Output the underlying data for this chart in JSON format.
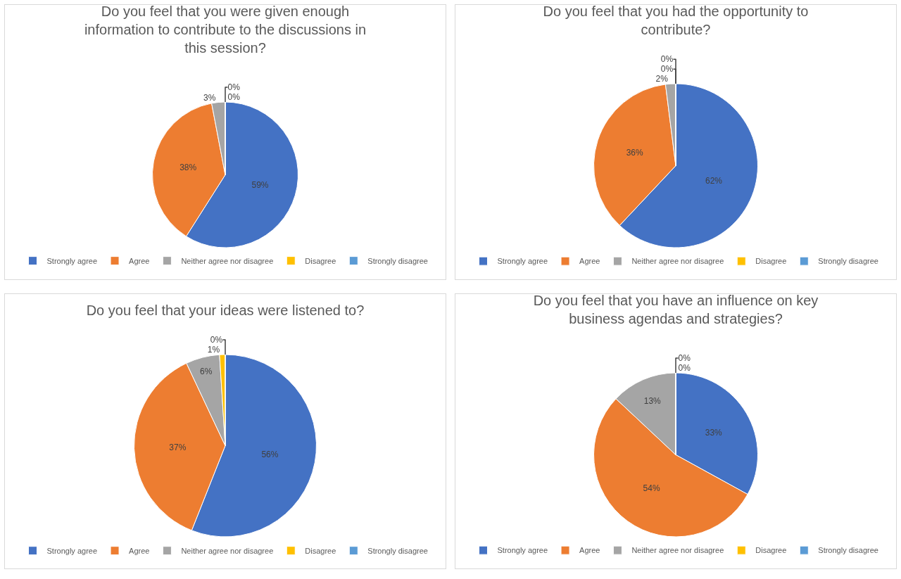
{
  "chart_data": [
    {
      "type": "pie",
      "title": "Do you feel that you were given enough information to contribute to the discussions in this session?",
      "categories": [
        "Strongly agree",
        "Agree",
        "Neither agree nor disagree",
        "Disagree",
        "Strongly disagree"
      ],
      "values": [
        59,
        38,
        3,
        0,
        0
      ],
      "value_labels": [
        "59%",
        "38%",
        "3%",
        "0%",
        "0%"
      ],
      "colors": [
        "#4472c4",
        "#ed7d31",
        "#a5a5a5",
        "#ffc000",
        "#5b9bd5"
      ],
      "legend": "bottom"
    },
    {
      "type": "pie",
      "title": "Do you feel that you had the opportunity to contribute?",
      "categories": [
        "Strongly agree",
        "Agree",
        "Neither agree nor disagree",
        "Disagree",
        "Strongly disagree"
      ],
      "values": [
        62,
        36,
        2,
        0,
        0
      ],
      "value_labels": [
        "62%",
        "36%",
        "2%",
        "0%",
        "0%"
      ],
      "colors": [
        "#4472c4",
        "#ed7d31",
        "#a5a5a5",
        "#ffc000",
        "#5b9bd5"
      ],
      "legend": "bottom"
    },
    {
      "type": "pie",
      "title": "Do you feel that your ideas were listened to?",
      "categories": [
        "Strongly agree",
        "Agree",
        "Neither agree nor disagree",
        "Disagree",
        "Strongly disagree"
      ],
      "values": [
        56,
        37,
        6,
        1,
        0
      ],
      "value_labels": [
        "56%",
        "37%",
        "6%",
        "1%",
        "0%"
      ],
      "colors": [
        "#4472c4",
        "#ed7d31",
        "#a5a5a5",
        "#ffc000",
        "#5b9bd5"
      ],
      "legend": "bottom"
    },
    {
      "type": "pie",
      "title": "Do you feel that you have an influence on key business agendas and strategies?",
      "categories": [
        "Strongly agree",
        "Agree",
        "Neither agree nor disagree",
        "Disagree",
        "Strongly disagree"
      ],
      "values": [
        33,
        54,
        13,
        0,
        0
      ],
      "value_labels": [
        "33%",
        "54%",
        "13%",
        "0%",
        "0%"
      ],
      "colors": [
        "#4472c4",
        "#ed7d31",
        "#a5a5a5",
        "#ffc000",
        "#5b9bd5"
      ],
      "legend": "bottom"
    }
  ]
}
